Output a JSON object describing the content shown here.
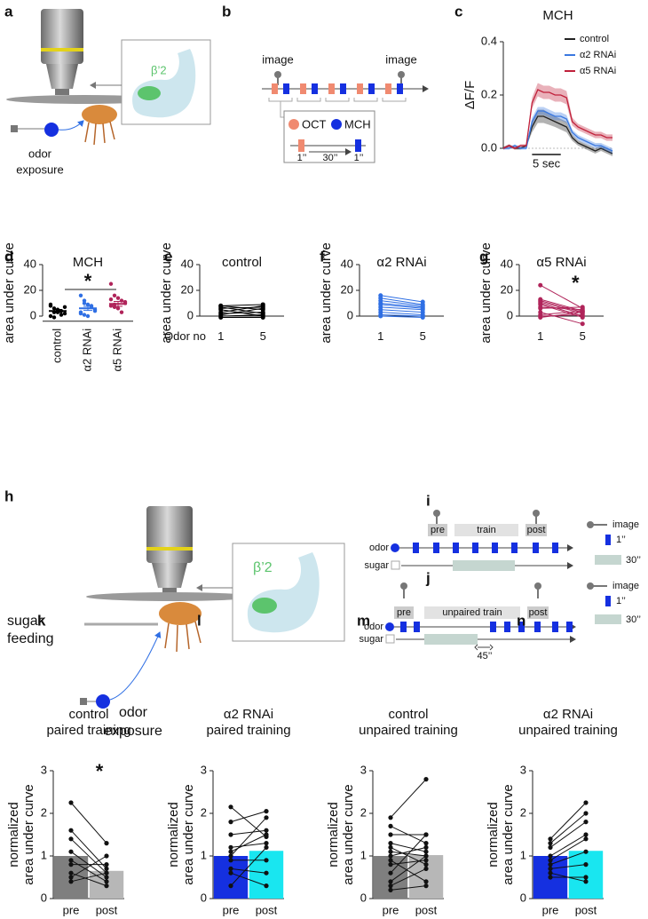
{
  "diagrams": {
    "a": {
      "letter": "a",
      "region": "β’2",
      "stimulus": [
        "odor",
        "exposure"
      ]
    },
    "b": {
      "letter": "b",
      "image_labels": [
        "image",
        "image"
      ],
      "legend": [
        "OCT",
        "MCH"
      ],
      "durations": [
        "1’’",
        "30’’",
        "1’’"
      ]
    },
    "h": {
      "letter": "h",
      "region": "β’2",
      "feeding": [
        "sugar",
        "feeding"
      ],
      "stimulus": [
        "odor",
        "exposure"
      ]
    },
    "i": {
      "letter": "i",
      "phases": [
        "pre",
        "train",
        "post"
      ],
      "rows": [
        "odor",
        "sugar"
      ],
      "legend": [
        "image",
        "1’’",
        "30’’"
      ]
    },
    "j": {
      "letter": "j",
      "phases": [
        "pre",
        "unpaired train",
        "post"
      ],
      "rows": [
        "odor",
        "sugar"
      ],
      "interval": "45’’",
      "legend": [
        "image",
        "1’’",
        "30’’"
      ]
    }
  },
  "chart_data": [
    {
      "type": "line",
      "letter": "c",
      "title": "MCH",
      "y_label": "ΔF/F",
      "x": [
        0,
        1,
        2,
        3,
        4,
        5,
        6,
        7,
        8,
        9,
        10,
        11,
        12,
        13,
        14,
        15,
        16,
        17,
        18,
        19
      ],
      "xlim": [
        0,
        19
      ],
      "ylim": [
        -0.03,
        0.43
      ],
      "yticks": [
        {
          "value": 0,
          "label": "0.0"
        },
        {
          "value": 0.2,
          "label": "0.2"
        },
        {
          "value": 0.4,
          "label": "0.4"
        }
      ],
      "scale_bar": {
        "value": 5,
        "label": "5 sec"
      },
      "legend": "upper right",
      "series": [
        {
          "name": "control",
          "color": "#222222",
          "values": [
            0,
            0.01,
            0,
            0,
            0.01,
            0.08,
            0.12,
            0.12,
            0.11,
            0.1,
            0.09,
            0.08,
            0.04,
            0.02,
            0.01,
            0,
            -0.01,
            0,
            -0.01,
            -0.02
          ],
          "errors": [
            0.005,
            0.005,
            0.005,
            0.005,
            0.005,
            0.02,
            0.025,
            0.025,
            0.022,
            0.02,
            0.02,
            0.02,
            0.012,
            0.01,
            0.01,
            0.01,
            0.01,
            0.01,
            0.01,
            0.01
          ]
        },
        {
          "name": "α2 RNAi",
          "color": "#3a78e0",
          "values": [
            0,
            0,
            0.01,
            0,
            0,
            0.1,
            0.14,
            0.14,
            0.13,
            0.12,
            0.12,
            0.11,
            0.06,
            0.04,
            0.03,
            0.02,
            0.01,
            0.01,
            0,
            -0.01
          ],
          "errors": [
            0.005,
            0.005,
            0.005,
            0.005,
            0.005,
            0.015,
            0.015,
            0.015,
            0.015,
            0.015,
            0.015,
            0.015,
            0.01,
            0.01,
            0.01,
            0.01,
            0.01,
            0.01,
            0.01,
            0.01
          ]
        },
        {
          "name": "α5 RNAi",
          "color": "#c0203a",
          "values": [
            0,
            0.01,
            0,
            0.01,
            0.01,
            0.17,
            0.22,
            0.21,
            0.21,
            0.2,
            0.2,
            0.19,
            0.1,
            0.08,
            0.07,
            0.06,
            0.05,
            0.05,
            0.04,
            0.04
          ],
          "errors": [
            0.005,
            0.005,
            0.005,
            0.005,
            0.005,
            0.02,
            0.025,
            0.025,
            0.025,
            0.025,
            0.025,
            0.025,
            0.015,
            0.012,
            0.012,
            0.012,
            0.012,
            0.012,
            0.012,
            0.012
          ]
        }
      ]
    },
    {
      "type": "strip",
      "letter": "d",
      "title": "MCH",
      "y_label": "area under curve",
      "categories": [
        "control",
        "α2 RNAi",
        "α5 RNAi"
      ],
      "colors": [
        "#000000",
        "#2f6fe4",
        "#b0245a"
      ],
      "values": [
        [
          9,
          6,
          3,
          1,
          2,
          0,
          -1,
          5,
          4,
          7,
          8,
          3
        ],
        [
          16,
          12,
          9,
          7,
          5,
          3,
          1,
          0,
          8,
          4,
          2,
          10
        ],
        [
          25,
          16,
          14,
          12,
          10,
          8,
          7,
          6,
          3,
          11,
          13,
          9
        ]
      ],
      "means": [
        4,
        6,
        9.5
      ],
      "sems": [
        1.2,
        1.6,
        1.9
      ],
      "ylim": [
        -4,
        40
      ],
      "yticks": [
        0,
        20,
        40
      ],
      "significance": "*"
    },
    {
      "type": "paired",
      "letter": "e",
      "title": "control",
      "y_label": "area under curve",
      "x_title": "Odor no",
      "categories": [
        "1",
        "5"
      ],
      "color": "#000000",
      "values": [
        [
          8,
          7,
          6,
          5,
          3,
          1,
          0,
          -1,
          2,
          8
        ],
        [
          9,
          2,
          7,
          0,
          8,
          6,
          1,
          -1,
          3,
          5
        ]
      ],
      "ylim": [
        -4,
        40
      ],
      "yticks": [
        0,
        20,
        40
      ]
    },
    {
      "type": "paired",
      "letter": "f",
      "title": "α2 RNAi",
      "y_label": "area under curve",
      "categories": [
        "1",
        "5"
      ],
      "color": "#2f6fe4",
      "values": [
        [
          16,
          14,
          10,
          9,
          7,
          5,
          3,
          1,
          0,
          12
        ],
        [
          11,
          9,
          7,
          6,
          5,
          3,
          1,
          0,
          -1,
          8
        ]
      ],
      "ylim": [
        -4,
        40
      ],
      "yticks": [
        0,
        20,
        40
      ]
    },
    {
      "type": "paired",
      "letter": "g",
      "title": "α5 RNAi",
      "y_label": "area under curve",
      "categories": [
        "1",
        "5"
      ],
      "color": "#b0245a",
      "values": [
        [
          24,
          13,
          12,
          11,
          10,
          9,
          7,
          6,
          3,
          0,
          -1,
          1
        ],
        [
          6,
          4,
          3,
          2,
          0,
          -1,
          5,
          7,
          -6,
          1,
          3,
          4
        ]
      ],
      "ylim": [
        -4,
        40
      ],
      "yticks": [
        0,
        20,
        40
      ],
      "significance": "*"
    },
    {
      "type": "paired_bar",
      "letter": "k",
      "title": [
        "control",
        "paired training"
      ],
      "y_label": [
        "normalized",
        "area under curve"
      ],
      "categories": [
        "pre",
        "post"
      ],
      "colors": [
        "#7f7f7f",
        "#b7b7b7"
      ],
      "means": [
        1,
        0.65
      ],
      "values": [
        [
          2.25,
          1.6,
          1.4,
          1.1,
          0.9,
          0.8,
          0.6,
          0.4,
          0.5
        ],
        [
          1.3,
          0.7,
          0.6,
          0.5,
          0.4,
          0.8,
          0.3,
          0.6,
          1.0
        ]
      ],
      "ylim": [
        0,
        3
      ],
      "yticks": [
        0,
        1,
        2,
        3
      ],
      "significance": "*"
    },
    {
      "type": "paired_bar",
      "letter": "l",
      "title": [
        "α2 RNAi",
        "paired training"
      ],
      "y_label": [
        "normalized",
        "area under curve"
      ],
      "categories": [
        "pre",
        "post"
      ],
      "colors": [
        "#1530e0",
        "#19e6f0"
      ],
      "means": [
        1,
        1.12
      ],
      "values": [
        [
          2.15,
          1.8,
          1.5,
          1.2,
          1,
          0.9,
          0.7,
          0.6,
          0.3,
          1.1
        ],
        [
          1.45,
          2.05,
          1.6,
          1.3,
          1.9,
          0.9,
          0.6,
          0.3,
          1.2,
          1.5
        ]
      ],
      "ylim": [
        0,
        3
      ],
      "yticks": [
        0,
        1,
        2,
        3
      ]
    },
    {
      "type": "paired_bar",
      "letter": "m",
      "title": [
        "control",
        "unpaired training"
      ],
      "y_label": [
        "normalized",
        "area under curve"
      ],
      "categories": [
        "pre",
        "post"
      ],
      "colors": [
        "#7f7f7f",
        "#b7b7b7"
      ],
      "means": [
        1,
        1.02
      ],
      "values": [
        [
          1.9,
          1.7,
          1.5,
          1.3,
          1.2,
          1.0,
          0.9,
          0.8,
          0.6,
          0.4,
          0.3,
          0.2,
          1.1
        ],
        [
          2.8,
          1.3,
          1.5,
          1.1,
          0.8,
          1.2,
          0.4,
          0.9,
          1.5,
          1.0,
          0.7,
          0.3,
          1.0
        ]
      ],
      "ylim": [
        0,
        3
      ],
      "yticks": [
        0,
        1,
        2,
        3
      ]
    },
    {
      "type": "paired_bar",
      "letter": "n",
      "title": [
        "α2 RNAi",
        "unpaired training"
      ],
      "y_label": [
        "normalized",
        "area under curve"
      ],
      "categories": [
        "pre",
        "post"
      ],
      "colors": [
        "#1530e0",
        "#19e6f0"
      ],
      "means": [
        1,
        1.12
      ],
      "values": [
        [
          1.4,
          1.3,
          1.2,
          1.0,
          0.9,
          0.8,
          0.7,
          0.5,
          0.6
        ],
        [
          2.25,
          2.0,
          1.8,
          1.5,
          1.4,
          1.1,
          0.8,
          0.5,
          0.4
        ]
      ],
      "ylim": [
        0,
        3
      ],
      "yticks": [
        0,
        1,
        2,
        3
      ]
    }
  ]
}
